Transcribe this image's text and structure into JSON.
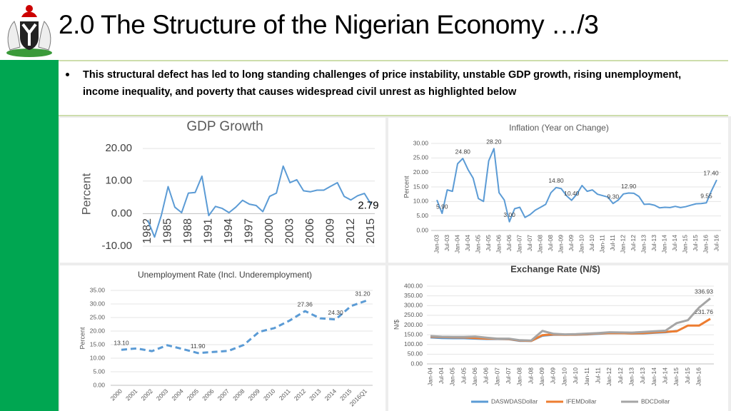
{
  "slide": {
    "title": "2.0 The Structure of the Nigerian Economy …/3",
    "bullet": "This structural defect has led to long standing challenges of price instability, unstable GDP growth, rising unemployment, income inequality, and poverty that causes widespread civil unrest as highlighted below"
  },
  "chart_data": [
    {
      "type": "line",
      "title": "GDP Growth",
      "y_label": "Percent",
      "grid": true,
      "color": "#5b9bd5",
      "x": [
        1982,
        1983,
        1984,
        1985,
        1986,
        1987,
        1988,
        1989,
        1990,
        1991,
        1992,
        1993,
        1994,
        1995,
        1996,
        1997,
        1998,
        1999,
        2000,
        2001,
        2002,
        2003,
        2004,
        2005,
        2006,
        2007,
        2008,
        2009,
        2010,
        2011,
        2012,
        2013,
        2014,
        2015
      ],
      "values": [
        -2.0,
        -7.2,
        -0.5,
        8.3,
        2.0,
        0.3,
        6.3,
        6.5,
        11.5,
        -0.6,
        2.2,
        1.6,
        0.3,
        2.0,
        4.1,
        2.9,
        2.5,
        0.6,
        5.3,
        6.3,
        14.6,
        9.5,
        10.4,
        7.0,
        6.7,
        7.2,
        7.2,
        8.4,
        9.5,
        5.3,
        4.2,
        5.5,
        6.2,
        2.79
      ],
      "xlim": [
        1982,
        2015
      ],
      "xticks": [
        1982,
        1985,
        1988,
        1991,
        1994,
        1997,
        2000,
        2003,
        2006,
        2009,
        2012,
        2015
      ],
      "ylim": [
        -10,
        22
      ],
      "yticks": [
        {
          "value": -10,
          "label": "-10.00"
        },
        {
          "value": 0,
          "label": "0.00"
        },
        {
          "value": 10,
          "label": "10.00"
        },
        {
          "value": 20,
          "label": "20.00"
        }
      ],
      "labeled_points": [
        33
      ]
    },
    {
      "type": "line",
      "title": "Inflation (Year on Change)",
      "y_label": "Percent",
      "grid": true,
      "color": "#5b9bd5",
      "categories": [
        "Jan-03",
        null,
        "Jul-03",
        null,
        "Jan-04",
        null,
        "Jul-04",
        null,
        "Jan-05",
        null,
        "Jul-05",
        null,
        "Jan-06",
        null,
        "Jul-06",
        null,
        "Jan-07",
        null,
        "Jul-07",
        null,
        "Jan-08",
        null,
        "Jul-08",
        null,
        "Jan-09",
        null,
        "Jul-09",
        null,
        "Jan-10",
        null,
        "Jul-10",
        null,
        "Jan-11",
        null,
        "Jul-11",
        null,
        "Jan-12",
        null,
        "Jul-12",
        null,
        "Jan-13",
        null,
        "Jul-13",
        null,
        "Jan-14",
        null,
        "Jul-14",
        null,
        "Jan-15",
        null,
        "Jul-15",
        null,
        "Jan-16",
        null,
        "Jul-16"
      ],
      "values": [
        10.5,
        5.9,
        14.0,
        13.5,
        23.0,
        24.8,
        21.0,
        18.0,
        11.0,
        10.0,
        24.0,
        28.2,
        13.0,
        10.5,
        3.0,
        7.5,
        8.0,
        4.5,
        5.5,
        7.0,
        8.0,
        9.0,
        13.0,
        14.8,
        14.4,
        12.0,
        10.4,
        12.5,
        15.5,
        13.5,
        14.0,
        12.5,
        12.0,
        11.5,
        9.3,
        10.5,
        12.6,
        12.9,
        12.8,
        11.7,
        9.0,
        9.1,
        8.7,
        7.8,
        8.0,
        7.9,
        8.3,
        7.9,
        8.2,
        8.7,
        9.2,
        9.3,
        9.55,
        13.7,
        17.4
      ],
      "value_labels": [
        null,
        "5.90",
        null,
        null,
        null,
        "24.80",
        null,
        null,
        null,
        null,
        null,
        "28.20",
        null,
        null,
        "3.00",
        null,
        null,
        null,
        null,
        null,
        null,
        null,
        null,
        "14.80",
        null,
        null,
        "10.40",
        null,
        null,
        null,
        null,
        null,
        null,
        null,
        "9.30",
        null,
        null,
        "12.90",
        null,
        null,
        null,
        null,
        null,
        null,
        null,
        null,
        null,
        null,
        null,
        null,
        null,
        null,
        "9.55",
        null,
        "17.40"
      ],
      "ylim": [
        0,
        30
      ],
      "yticks": [
        {
          "value": 0,
          "label": "0.00"
        },
        {
          "value": 5,
          "label": "5.00"
        },
        {
          "value": 10,
          "label": "10.00"
        },
        {
          "value": 15,
          "label": "15.00"
        },
        {
          "value": 20,
          "label": "20.00"
        },
        {
          "value": 25,
          "label": "25.00"
        },
        {
          "value": 30,
          "label": "30.00"
        }
      ]
    },
    {
      "type": "line",
      "title": "Unemployment Rate (Incl. Underemployment)",
      "y_label": "Percent",
      "grid": true,
      "color": "#5b9bd5",
      "line_style": "dashed",
      "categories": [
        "2000",
        "2001",
        "2002",
        "2003",
        "2004",
        "2005",
        "2006",
        "2007",
        "2008",
        "2009",
        "2010",
        "2011",
        "2012",
        "2013",
        "2014",
        "2015",
        "2016Q1"
      ],
      "values": [
        13.1,
        13.6,
        12.6,
        14.8,
        13.4,
        11.9,
        12.3,
        12.7,
        14.9,
        19.7,
        21.1,
        23.9,
        27.36,
        24.7,
        24.3,
        29.2,
        31.2
      ],
      "value_labels": [
        "13.10",
        null,
        null,
        null,
        null,
        "11.90",
        null,
        null,
        null,
        null,
        null,
        null,
        "27.36",
        null,
        "24.30",
        null,
        "31.20"
      ],
      "ylim": [
        0,
        35
      ],
      "yticks": [
        {
          "value": 0,
          "label": "0.00"
        },
        {
          "value": 5,
          "label": "5.00"
        },
        {
          "value": 10,
          "label": "10.00"
        },
        {
          "value": 15,
          "label": "15.00"
        },
        {
          "value": 20,
          "label": "20.00"
        },
        {
          "value": 25,
          "label": "25.00"
        },
        {
          "value": 30,
          "label": "30.00"
        },
        {
          "value": 35,
          "label": "35.00"
        }
      ]
    },
    {
      "type": "line",
      "title": "Exchange Rate (N/$)",
      "y_label": "N/$",
      "grid": true,
      "legend": "bottom",
      "categories": [
        "Jan-04",
        "Jul-04",
        "Jan-05",
        "Jul-05",
        "Jan-06",
        "Jul-06",
        "Jan-07",
        "Jul-07",
        "Jan-08",
        "Jul-08",
        "Jan-09",
        "Jul-09",
        "Jan-10",
        "Jul-10",
        "Jan-11",
        "Jul-11",
        "Jan-12",
        "Jul-12",
        "Jan-13",
        "Jul-13",
        "Jan-14",
        "Jul-14",
        "Jan-15",
        "Jul-15",
        "Jan-16",
        null
      ],
      "series": [
        {
          "name": "DASWDASDollar",
          "color": "#5b9bd5",
          "values": [
            136,
            133,
            132,
            132,
            130,
            128,
            128,
            127,
            118,
            118,
            145,
            150,
            150,
            150,
            152,
            155,
            158,
            158,
            157,
            157,
            160,
            163,
            170,
            null,
            null,
            null
          ]
        },
        {
          "name": "IFEMDollar",
          "color": "#ed7d31",
          "values": [
            140,
            138,
            137,
            136,
            133,
            130,
            129,
            128,
            120,
            118,
            148,
            152,
            150,
            151,
            153,
            157,
            159,
            158,
            157,
            158,
            162,
            165,
            168,
            197,
            197,
            231.76
          ],
          "value_labels": [
            null,
            null,
            null,
            null,
            null,
            null,
            null,
            null,
            null,
            null,
            null,
            null,
            null,
            null,
            null,
            null,
            null,
            null,
            null,
            null,
            null,
            null,
            null,
            null,
            null,
            "231.76"
          ]
        },
        {
          "name": "BDCDollar",
          "color": "#a5a5a5",
          "values": [
            143,
            140,
            139,
            139,
            141,
            135,
            130,
            130,
            122,
            120,
            170,
            155,
            152,
            153,
            156,
            159,
            163,
            162,
            161,
            164,
            168,
            171,
            210,
            225,
            290,
            336.93
          ],
          "value_labels": [
            null,
            null,
            null,
            null,
            null,
            null,
            null,
            null,
            null,
            null,
            null,
            null,
            null,
            null,
            null,
            null,
            null,
            null,
            null,
            null,
            null,
            null,
            null,
            null,
            null,
            "336.93"
          ]
        }
      ],
      "ylim": [
        0,
        400
      ],
      "yticks": [
        {
          "value": 0,
          "label": "0.00"
        },
        {
          "value": 50,
          "label": "50.00"
        },
        {
          "value": 100,
          "label": "100.00"
        },
        {
          "value": 150,
          "label": "150.00"
        },
        {
          "value": 200,
          "label": "200.00"
        },
        {
          "value": 250,
          "label": "250.00"
        },
        {
          "value": 300,
          "label": "300.00"
        },
        {
          "value": 350,
          "label": "350.00"
        },
        {
          "value": 400,
          "label": "400.00"
        }
      ]
    }
  ]
}
